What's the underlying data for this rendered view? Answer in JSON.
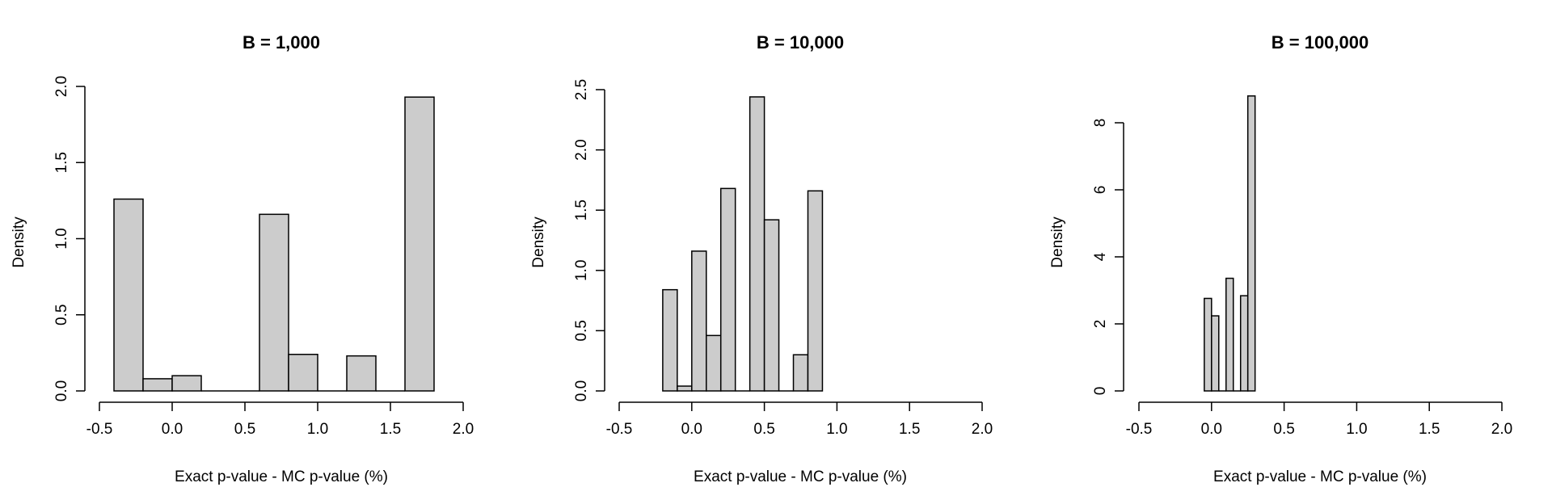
{
  "chart_data": [
    {
      "type": "bar",
      "subtype": "histogram",
      "title": "B = 1,000",
      "xlabel": "Exact p-value - MC p-value (%)",
      "ylabel": "Density",
      "xlim": [
        -0.5,
        2.0
      ],
      "ylim": [
        0,
        2.0
      ],
      "xticks": [
        "-0.5",
        "0.0",
        "0.5",
        "1.0",
        "1.5",
        "2.0"
      ],
      "yticks": [
        "0.0",
        "0.5",
        "1.0",
        "1.5",
        "2.0"
      ],
      "bin_edges": [
        -0.4,
        -0.2,
        0.0,
        0.2,
        0.4,
        0.6,
        0.8,
        1.0,
        1.2,
        1.4,
        1.6,
        1.8
      ],
      "values": [
        1.26,
        0.08,
        0.1,
        0.0,
        0.0,
        1.16,
        0.24,
        0.0,
        0.23,
        0.0,
        1.93
      ],
      "bar_color": "#cccccc",
      "grid": false
    },
    {
      "type": "bar",
      "subtype": "histogram",
      "title": "B = 10,000",
      "xlabel": "Exact p-value - MC p-value (%)",
      "ylabel": "Density",
      "xlim": [
        -0.5,
        2.0
      ],
      "ylim": [
        0,
        2.5
      ],
      "xticks": [
        "-0.5",
        "0.0",
        "0.5",
        "1.0",
        "1.5",
        "2.0"
      ],
      "yticks": [
        "0.0",
        "0.5",
        "1.0",
        "1.5",
        "2.0",
        "2.5"
      ],
      "bin_edges": [
        -0.2,
        -0.1,
        0.0,
        0.1,
        0.2,
        0.3,
        0.4,
        0.5,
        0.6,
        0.7,
        0.8,
        0.9
      ],
      "values": [
        0.84,
        0.04,
        1.16,
        0.46,
        1.68,
        0.0,
        2.44,
        1.42,
        0.0,
        0.3,
        1.66
      ],
      "bar_color": "#cccccc",
      "grid": false
    },
    {
      "type": "bar",
      "subtype": "histogram",
      "title": "B = 100,000",
      "xlabel": "Exact p-value - MC p-value (%)",
      "ylabel": "Density",
      "xlim": [
        -0.5,
        2.0
      ],
      "ylim": [
        0,
        8
      ],
      "xticks": [
        "-0.5",
        "0.0",
        "0.5",
        "1.0",
        "1.5",
        "2.0"
      ],
      "yticks": [
        "0",
        "2",
        "4",
        "6",
        "8"
      ],
      "bin_edges": [
        -0.05,
        0.0,
        0.05,
        0.1,
        0.15,
        0.2,
        0.25,
        0.3
      ],
      "values": [
        2.76,
        2.24,
        0.0,
        3.36,
        0.0,
        2.84,
        8.8
      ],
      "bar_color": "#cccccc",
      "grid": false
    }
  ]
}
